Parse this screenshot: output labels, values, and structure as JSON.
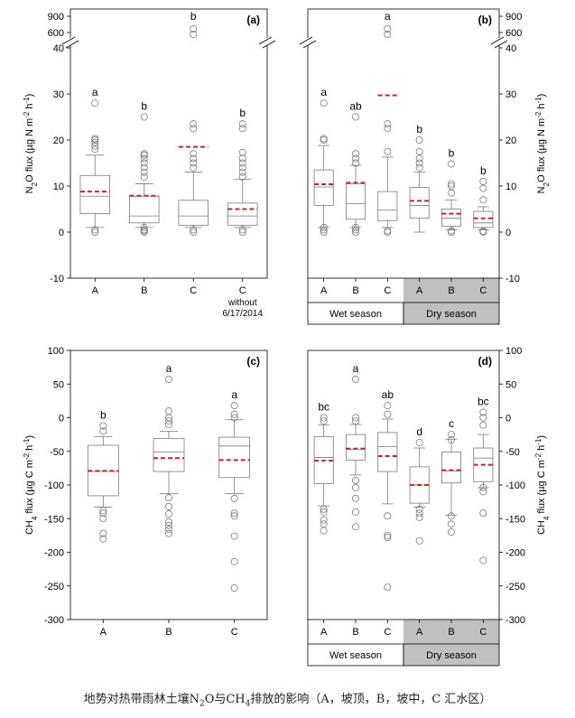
{
  "caption": {
    "prefix": "地势对热带雨林土壤N",
    "sub1": "2",
    "middle": "O与CH",
    "sub2": "4",
    "suffix": "排放的影响（A，坡顶，B，坡中，C 汇水区）"
  },
  "colors": {
    "mean": "#c0262b",
    "box": "#7a7a7a",
    "dry_band": "#c0c0c0",
    "frame": "#000000"
  },
  "season_labels": {
    "wet": "Wet season",
    "dry": "Dry season"
  },
  "chart_data": [
    {
      "id": "a",
      "type": "box",
      "panel_label": "(a)",
      "ylabel_parts": [
        "N",
        "2",
        "O flux (µg N m",
        "-2",
        " h",
        "-1",
        ")"
      ],
      "ylim": [
        -10,
        40
      ],
      "yticks": [
        -10,
        0,
        10,
        20,
        30,
        40
      ],
      "break_ticks": [
        600,
        900
      ],
      "yaxis_side": "left",
      "categories": [
        "A",
        "B",
        "C",
        "C"
      ],
      "category_sublabels": [
        "",
        "",
        "",
        "without\n6/17/2014"
      ],
      "letters": [
        "a",
        "b",
        "b",
        "b"
      ],
      "stats": [
        {
          "min": 1,
          "q1": 4,
          "median": 7.8,
          "q3": 12.3,
          "max": 16.7,
          "mean": 8.8,
          "outliers": [
            0,
            0.5,
            18,
            18.7,
            19.5,
            20,
            20.3,
            28
          ]
        },
        {
          "min": 1,
          "q1": 2,
          "median": 3.5,
          "q3": 7.8,
          "max": 10.5,
          "mean": 7.9,
          "outliers": [
            0,
            0.3,
            0.5,
            1,
            12,
            13,
            14,
            15,
            16,
            16.7,
            17,
            25
          ]
        },
        {
          "min": 1,
          "q1": 1.5,
          "median": 3.5,
          "q3": 6.9,
          "max": 13,
          "mean": 18.5,
          "outliers": [
            0,
            0.5,
            14,
            15,
            16,
            17,
            22.5,
            23.5
          ],
          "outliers_high": [
            650,
            700
          ]
        },
        {
          "min": 1,
          "q1": 1.5,
          "median": 3.5,
          "q3": 6.3,
          "max": 11.5,
          "mean": 5,
          "outliers": [
            0,
            0.5,
            12,
            13,
            14,
            15,
            16,
            17.3,
            22.5,
            23.5
          ]
        }
      ]
    },
    {
      "id": "b",
      "type": "box",
      "panel_label": "(b)",
      "ylabel_parts": [
        "N",
        "2",
        "O flux (µg N m",
        "-2",
        " h",
        "-1",
        ")"
      ],
      "ylim": [
        -10,
        40
      ],
      "yticks": [
        -10,
        0,
        10,
        20,
        30,
        40
      ],
      "break_ticks": [
        600,
        900
      ],
      "yaxis_side": "right",
      "categories": [
        "A",
        "B",
        "C",
        "A",
        "B",
        "C"
      ],
      "seasons": [
        "wet",
        "wet",
        "wet",
        "dry",
        "dry",
        "dry"
      ],
      "letters": [
        "a",
        "ab",
        "a",
        "b",
        "b",
        "b"
      ],
      "stats": [
        {
          "min": 1,
          "q1": 5.8,
          "median": 9.8,
          "q3": 13.5,
          "max": 18.8,
          "mean": 10.4,
          "outliers": [
            0,
            0.5,
            1,
            20,
            20.3,
            28
          ]
        },
        {
          "min": 1,
          "q1": 2.8,
          "median": 6.2,
          "q3": 10.5,
          "max": 14.5,
          "mean": 10.7,
          "outliers": [
            0,
            0.5,
            1,
            15,
            16,
            17,
            25
          ]
        },
        {
          "min": 1,
          "q1": 2.5,
          "median": 4.8,
          "q3": 8.8,
          "max": 16.3,
          "mean": 29.7,
          "outliers": [
            0,
            0.3,
            17.5,
            22.5,
            23.5
          ],
          "outliers_high": [
            650,
            700
          ]
        },
        {
          "min": 0,
          "q1": 3,
          "median": 5.8,
          "q3": 9.7,
          "max": 13,
          "mean": 6.8,
          "outliers": [
            14,
            15,
            16,
            17.5,
            20
          ]
        },
        {
          "min": 0.5,
          "q1": 1.3,
          "median": 3,
          "q3": 5,
          "max": 7,
          "mean": 4,
          "outliers": [
            0,
            0.3,
            8.5,
            10,
            10.5,
            14.8
          ]
        },
        {
          "min": 0.5,
          "q1": 1,
          "median": 2,
          "q3": 4.5,
          "max": 5.5,
          "mean": 3,
          "outliers": [
            0,
            0.2,
            7,
            9.5,
            11
          ]
        }
      ]
    },
    {
      "id": "c",
      "type": "box",
      "panel_label": "(c)",
      "ylabel_parts": [
        "CH",
        "4",
        " flux (µg C m",
        "-2",
        " h",
        "-1",
        ")"
      ],
      "ylim": [
        -300,
        100
      ],
      "yticks": [
        -300,
        -250,
        -200,
        -150,
        -100,
        -50,
        0,
        50,
        100
      ],
      "yaxis_side": "left",
      "categories": [
        "A",
        "B",
        "C"
      ],
      "letters": [
        "b",
        "a",
        "a"
      ],
      "stats": [
        {
          "min": -133,
          "q1": -116,
          "median": -80,
          "q3": -41,
          "max": -28,
          "mean": -79,
          "outliers": [
            -138,
            -142,
            -150,
            -172,
            -180,
            -20,
            -12
          ]
        },
        {
          "min": -113,
          "q1": -80,
          "median": -51,
          "q3": -31,
          "max": -20,
          "mean": -60,
          "outliers": [
            -119,
            -132,
            -143,
            -155,
            -160,
            -166,
            -172,
            -10,
            -5,
            0,
            10,
            57
          ]
        },
        {
          "min": -113,
          "q1": -89,
          "median": -42,
          "q3": -29,
          "max": -3,
          "mean": -63,
          "outliers": [
            -120,
            -142,
            -146,
            -176,
            -214,
            -253,
            0,
            5,
            18
          ]
        }
      ]
    },
    {
      "id": "d",
      "type": "box",
      "panel_label": "(d)",
      "ylabel_parts": [
        "CH",
        "4",
        " flux (µg C m",
        "-2",
        " h",
        "-1",
        ")"
      ],
      "ylim": [
        -300,
        100
      ],
      "yticks": [
        -300,
        -250,
        -200,
        -150,
        -100,
        -50,
        0,
        50,
        100
      ],
      "yaxis_side": "right",
      "categories": [
        "A",
        "B",
        "C",
        "A",
        "B",
        "C"
      ],
      "seasons": [
        "wet",
        "wet",
        "wet",
        "dry",
        "dry",
        "dry"
      ],
      "letters": [
        "bc",
        "a",
        "ab",
        "d",
        "c",
        "bc"
      ],
      "stats": [
        {
          "min": -131,
          "q1": -98,
          "median": -59,
          "q3": -28,
          "max": -11,
          "mean": -64,
          "outliers": [
            -136,
            -140,
            -152,
            -158,
            -168,
            -5,
            0
          ]
        },
        {
          "min": -85,
          "q1": -63,
          "median": -47,
          "q3": -25,
          "max": -10,
          "mean": -46,
          "outliers": [
            -93,
            -104,
            -120,
            -140,
            -162,
            -5,
            0,
            57
          ]
        },
        {
          "min": -128,
          "q1": -80,
          "median": -43,
          "q3": -22,
          "max": -2,
          "mean": -57,
          "outliers": [
            -146,
            -175,
            -178,
            -252,
            5,
            18
          ]
        },
        {
          "min": -133,
          "q1": -127,
          "median": -100,
          "q3": -73,
          "max": -45,
          "mean": -100,
          "outliers": [
            -136,
            -142,
            -148,
            -183,
            -37
          ]
        },
        {
          "min": -145,
          "q1": -97,
          "median": -79,
          "q3": -51,
          "max": -32,
          "mean": -78,
          "outliers": [
            -146,
            -158,
            -170,
            -33,
            -25
          ]
        },
        {
          "min": -104,
          "q1": -95,
          "median": -60,
          "q3": -45,
          "max": -25,
          "mean": -70,
          "outliers": [
            -104,
            -110,
            -142,
            -212,
            -11,
            0,
            8
          ]
        }
      ]
    }
  ]
}
